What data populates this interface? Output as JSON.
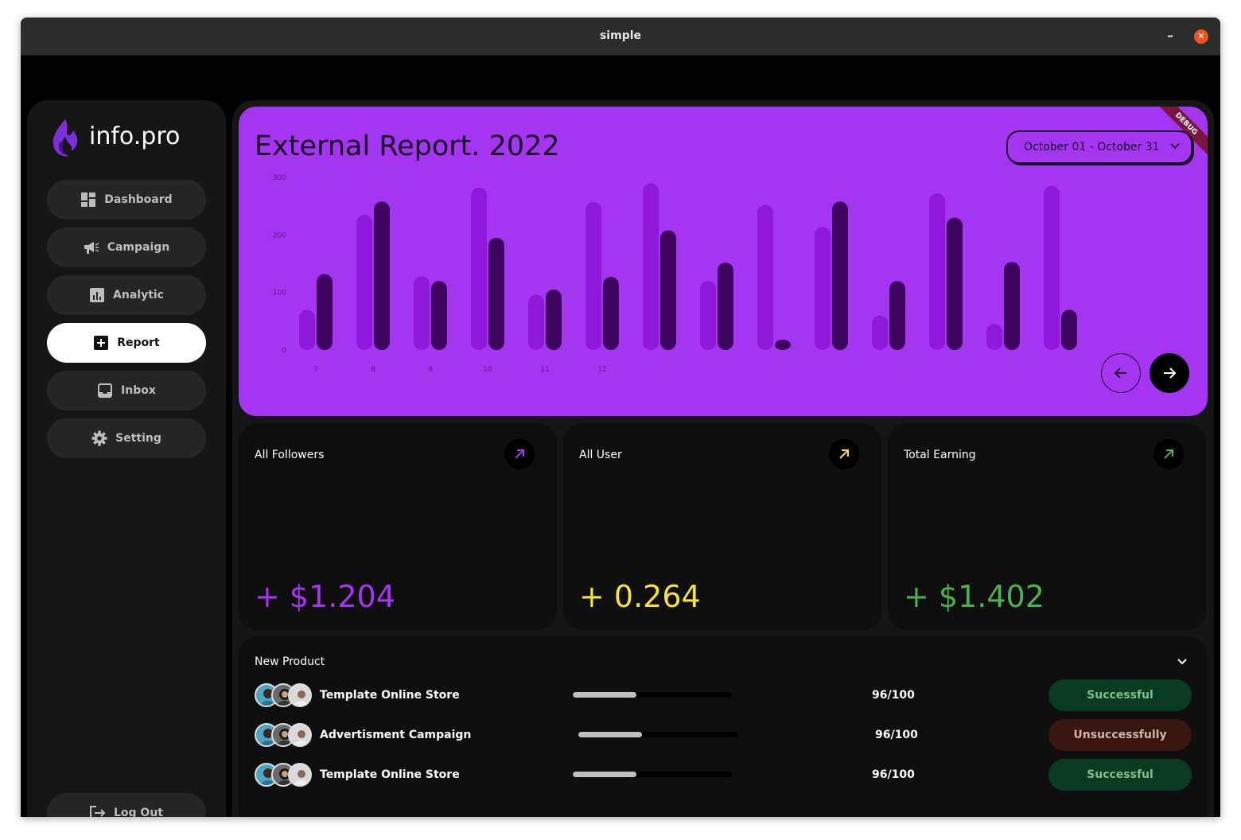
{
  "window": {
    "title": "simple"
  },
  "sidebar": {
    "brand": "info.pro",
    "items": [
      {
        "label": "Dashboard",
        "icon": "dashboard-icon"
      },
      {
        "label": "Campaign",
        "icon": "megaphone-icon"
      },
      {
        "label": "Analytic",
        "icon": "analytics-icon"
      },
      {
        "label": "Report",
        "icon": "add-box-icon",
        "active": true
      },
      {
        "label": "Inbox",
        "icon": "inbox-icon"
      },
      {
        "label": "Setting",
        "icon": "gear-icon"
      }
    ],
    "logout": "Log Out"
  },
  "report": {
    "title": "External Report. 2022",
    "date_range": "October 01 - October 31",
    "debug": "DEBUG",
    "accent": "#a435f0"
  },
  "chart_data": {
    "type": "bar",
    "ylim": [
      0,
      300
    ],
    "yticks": [
      "0",
      "100",
      "200",
      "300"
    ],
    "x_labels": [
      "7",
      "8",
      "9",
      "10",
      "11",
      "12"
    ],
    "series": [
      {
        "values": [
          70,
          235,
          128,
          282,
          96,
          257,
          290,
          120,
          252,
          214,
          60,
          272,
          45,
          285
        ],
        "color": "#8e19d9"
      },
      {
        "values": [
          132,
          258,
          120,
          195,
          105,
          127,
          208,
          152,
          18,
          258,
          120,
          230,
          153,
          70
        ],
        "color": "#3d055e"
      }
    ]
  },
  "stats": [
    {
      "label": "All Followers",
      "value": "+ $1.204",
      "color": "#a435f0"
    },
    {
      "label": "All User",
      "value": "+ 0.264",
      "color": "#f5e23a"
    },
    {
      "label": "Total Earning",
      "value": "+ $1.402",
      "color": "#4caf50"
    }
  ],
  "products": {
    "title": "New Product",
    "rows": [
      {
        "name": "Template Online Store",
        "progress": 0.4,
        "score_a": "96",
        "score_b": "/100",
        "status": "Successful",
        "ok": true
      },
      {
        "name": "Advertisment Campaign",
        "progress": 0.4,
        "score_a": "96",
        "score_b": "/100",
        "status": "Unsuccessfully",
        "ok": false
      },
      {
        "name": "Template Online Store",
        "progress": 0.4,
        "score_a": "96",
        "score_b": "/100",
        "status": "Successful",
        "ok": true
      }
    ]
  }
}
